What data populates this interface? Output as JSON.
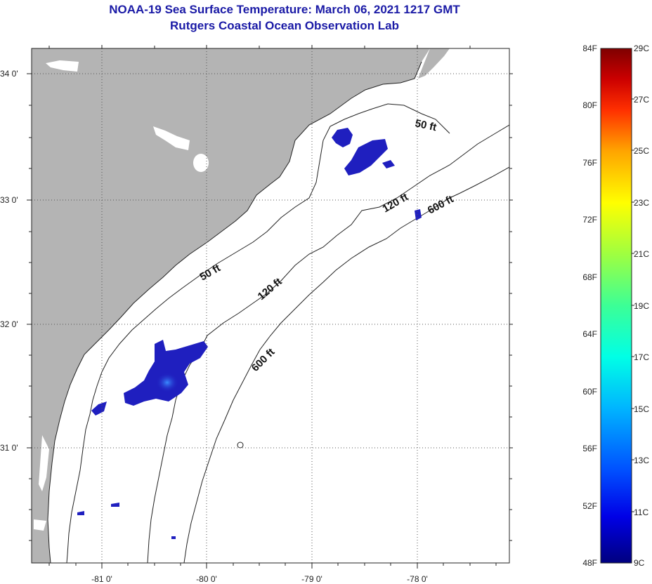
{
  "title": {
    "line1": "NOAA-19 Sea Surface Temperature:  March 06, 2021 1217 GMT",
    "line2": "Rutgers Coastal Ocean Observation Lab"
  },
  "map": {
    "lat_labels": [
      "34 0'",
      "33 0'",
      "32 0'",
      "31 0'"
    ],
    "lon_labels": [
      "-81 0'",
      "-80 0'",
      "-79 0'",
      "-78 0'"
    ],
    "contour_labels": [
      "50 ft",
      "50 ft",
      "120 ft",
      "120 ft",
      "600 ft",
      "600 ft"
    ],
    "colors": {
      "land": "#b4b4b4",
      "ocean": "#ffffff",
      "cold_sst": "#1f1fbf",
      "grid": "#555555"
    }
  },
  "colorbar": {
    "fahrenheit_labels": [
      "84F",
      "80F",
      "76F",
      "72F",
      "68F",
      "64F",
      "60F",
      "56F",
      "52F",
      "48F"
    ],
    "celsius_labels": [
      "29C",
      "27C",
      "25C",
      "23C",
      "21C",
      "19C",
      "17C",
      "15C",
      "13C",
      "11C",
      "9C"
    ],
    "scale_colors": [
      "#00007f",
      "#0000e6",
      "#0050ff",
      "#00b4ff",
      "#00ffe6",
      "#3cff96",
      "#9fff40",
      "#ffff00",
      "#ffa500",
      "#ff3000",
      "#cc0000",
      "#7f0000"
    ]
  }
}
